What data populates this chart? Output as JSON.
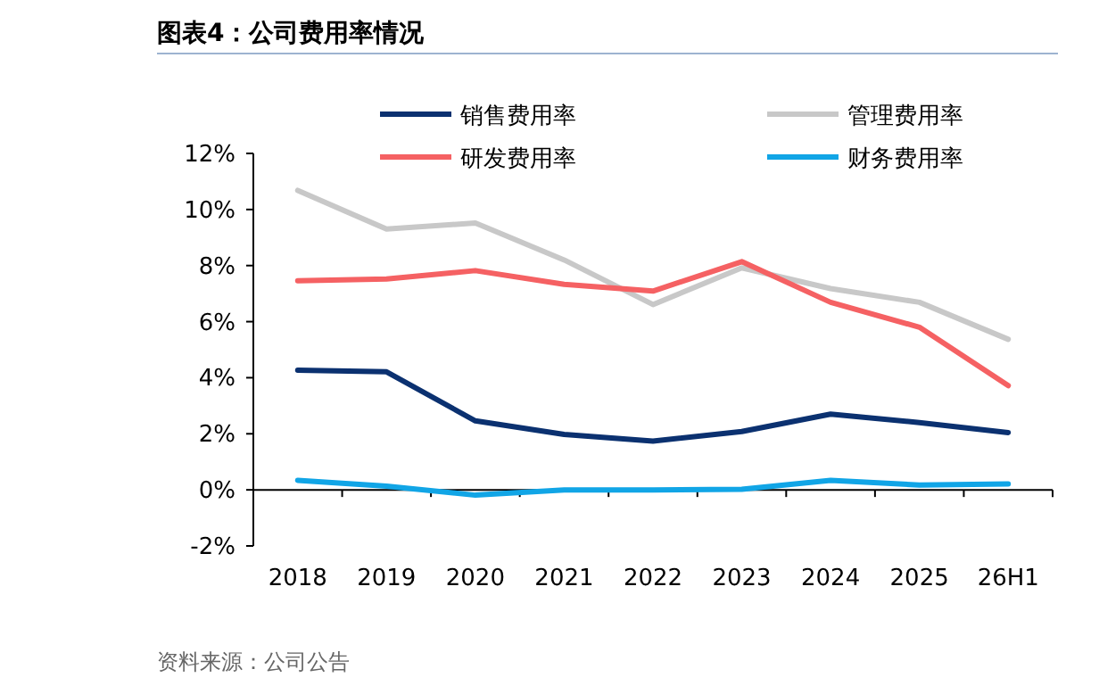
{
  "chart_data": {
    "type": "line",
    "title": "图表4：公司费用率情况",
    "categories": [
      "2018",
      "2019",
      "2020",
      "2021",
      "2022",
      "2023",
      "2024",
      "2025",
      "26H1"
    ],
    "series": [
      {
        "name": "销售费用率",
        "color": "#0b3170",
        "values": [
          4.27,
          4.21,
          2.46,
          1.98,
          1.74,
          2.08,
          2.7,
          2.4,
          2.04
        ]
      },
      {
        "name": "管理费用率",
        "color": "#c8c8c8",
        "values": [
          10.68,
          9.3,
          9.52,
          8.2,
          6.61,
          7.92,
          7.18,
          6.69,
          5.37
        ]
      },
      {
        "name": "研发费用率",
        "color": "#f56163",
        "values": [
          7.46,
          7.52,
          7.82,
          7.33,
          7.09,
          8.14,
          6.69,
          5.8,
          3.72
        ]
      },
      {
        "name": "财务费用率",
        "color": "#11a5e6",
        "values": [
          0.34,
          0.13,
          -0.19,
          0,
          0,
          0.02,
          0.34,
          0.17,
          0.21
        ]
      }
    ],
    "ylim": [
      -2,
      12
    ],
    "yticks": [
      {
        "value": -2,
        "label": "-2%"
      },
      {
        "value": 0,
        "label": "0%"
      },
      {
        "value": 2,
        "label": "2%"
      },
      {
        "value": 4,
        "label": "4%"
      },
      {
        "value": 6,
        "label": "6%"
      },
      {
        "value": 8,
        "label": "8%"
      },
      {
        "value": 10,
        "label": "10%"
      },
      {
        "value": 12,
        "label": "12%"
      }
    ],
    "legend": "top",
    "marker": "none",
    "line_style": "solid",
    "annotations": [
      "资料来源：公司公告"
    ]
  }
}
